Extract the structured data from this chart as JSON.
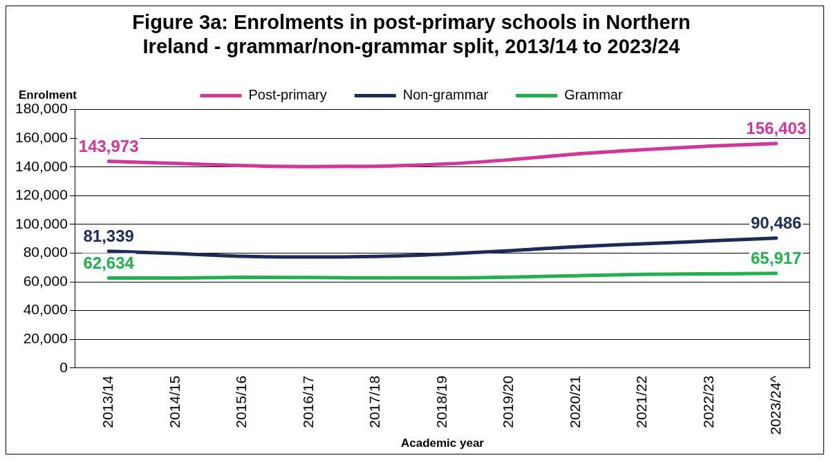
{
  "chart_data": {
    "type": "line",
    "title": "Figure 3a: Enrolments in post-primary schools in Northern Ireland - grammar/non-grammar split, 2013/14 to 2023/24",
    "xlabel": "Academic year",
    "ylabel": "Enrolment",
    "categories": [
      "2013/14",
      "2014/15",
      "2015/16",
      "2016/17",
      "2017/18",
      "2018/19",
      "2019/20",
      "2020/21",
      "2021/22",
      "2022/23",
      "2023/24^"
    ],
    "series": [
      {
        "name": "Post-primary",
        "color": "#d6339c",
        "values": [
          143973,
          142500,
          141000,
          140300,
          140500,
          142000,
          145000,
          149000,
          152000,
          154500,
          156403
        ],
        "value_labels": [
          "143,973",
          null,
          null,
          null,
          null,
          null,
          null,
          null,
          null,
          null,
          "156,403"
        ]
      },
      {
        "name": "Non-grammar",
        "color": "#1c2a5e",
        "values": [
          81339,
          79800,
          77800,
          77300,
          77700,
          79300,
          81700,
          84500,
          86500,
          88500,
          90486
        ],
        "value_labels": [
          "81,339",
          null,
          null,
          null,
          null,
          null,
          null,
          null,
          null,
          null,
          "90,486"
        ]
      },
      {
        "name": "Grammar",
        "color": "#1fb24a",
        "values": [
          62634,
          62700,
          63200,
          63000,
          62800,
          62800,
          63300,
          64300,
          65200,
          65600,
          65917
        ],
        "value_labels": [
          "62,634",
          null,
          null,
          null,
          null,
          null,
          null,
          null,
          null,
          null,
          "65,917"
        ]
      }
    ],
    "ylim": [
      0,
      180000
    ],
    "yticks": [
      {
        "value": 0,
        "label": "0"
      },
      {
        "value": 20000,
        "label": "20,000"
      },
      {
        "value": 40000,
        "label": "40,000"
      },
      {
        "value": 60000,
        "label": "60,000"
      },
      {
        "value": 80000,
        "label": "80,000"
      },
      {
        "value": 100000,
        "label": "100,000"
      },
      {
        "value": 120000,
        "label": "120,000"
      },
      {
        "value": 140000,
        "label": "140,000"
      },
      {
        "value": 160000,
        "label": "160,000"
      },
      {
        "value": 180000,
        "label": "180,000"
      }
    ],
    "grid": "y",
    "legend": "top",
    "marker": "none",
    "line_style": "solid"
  }
}
